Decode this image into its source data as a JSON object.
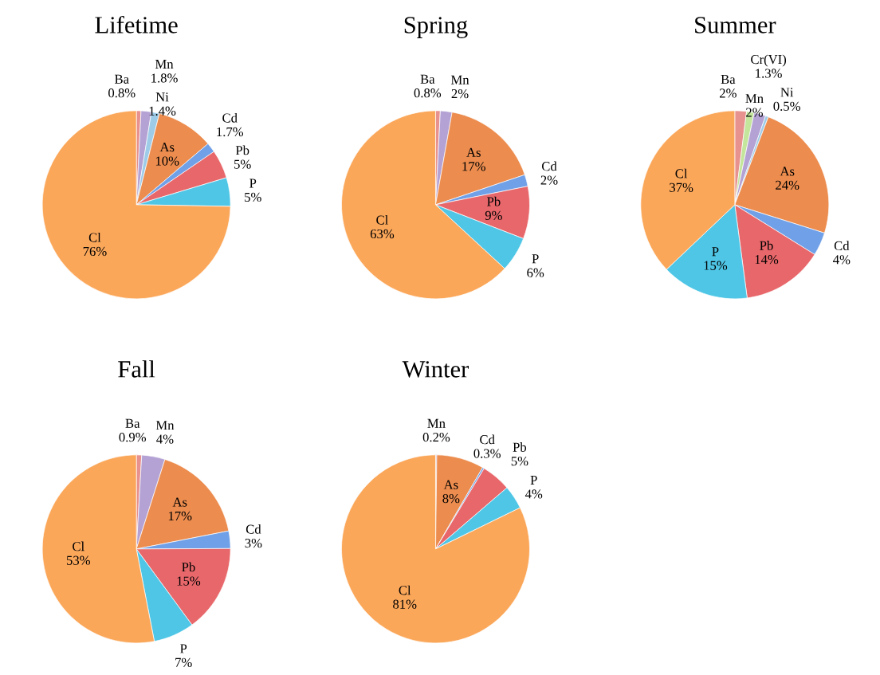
{
  "chart_data": [
    {
      "type": "pie",
      "title": "Lifetime",
      "categories": [
        "Ba",
        "Mn",
        "Ni",
        "As",
        "Cd",
        "Pb",
        "P",
        "Cl"
      ],
      "values": [
        0.8,
        1.8,
        1.4,
        10,
        1.7,
        5,
        5,
        76
      ],
      "value_labels": [
        "0.8%",
        "1.8%",
        "1.4%",
        "10%",
        "1.7%",
        "5%",
        "5%",
        "76%"
      ],
      "colors": [
        "#e8928f",
        "#b4a2d4",
        "#9ecbe8",
        "#ec8c4e",
        "#6fa0e8",
        "#e8676a",
        "#4fc6e6",
        "#fba75a"
      ]
    },
    {
      "type": "pie",
      "title": "Spring",
      "categories": [
        "Ba",
        "Mn",
        "As",
        "Cd",
        "Pb",
        "P",
        "Cl"
      ],
      "values": [
        0.8,
        2,
        17,
        2,
        9,
        6,
        63
      ],
      "value_labels": [
        "0.8%",
        "2%",
        "17%",
        "2%",
        "9%",
        "6%",
        "63%"
      ],
      "colors": [
        "#e8928f",
        "#b4a2d4",
        "#ec8c4e",
        "#6fa0e8",
        "#e8676a",
        "#4fc6e6",
        "#fba75a"
      ]
    },
    {
      "type": "pie",
      "title": "Summer",
      "categories": [
        "Ba",
        "Cr(VI)",
        "Mn",
        "Ni",
        "As",
        "Cd",
        "Pb",
        "P",
        "Cl"
      ],
      "values": [
        2,
        1.3,
        2,
        0.5,
        24,
        4,
        14,
        15,
        37
      ],
      "value_labels": [
        "2%",
        "1.3%",
        "2%",
        "0.5%",
        "24%",
        "4%",
        "14%",
        "15%",
        "37%"
      ],
      "colors": [
        "#e8928f",
        "#c3e59c",
        "#b4a2d4",
        "#9ecbe8",
        "#ec8c4e",
        "#6fa0e8",
        "#e8676a",
        "#4fc6e6",
        "#fba75a"
      ]
    },
    {
      "type": "pie",
      "title": "Fall",
      "categories": [
        "Ba",
        "Mn",
        "As",
        "Cd",
        "Pb",
        "P",
        "Cl"
      ],
      "values": [
        0.9,
        4,
        17,
        3,
        15,
        7,
        53
      ],
      "value_labels": [
        "0.9%",
        "4%",
        "17%",
        "3%",
        "15%",
        "7%",
        "53%"
      ],
      "colors": [
        "#e8928f",
        "#b4a2d4",
        "#ec8c4e",
        "#6fa0e8",
        "#e8676a",
        "#4fc6e6",
        "#fba75a"
      ]
    },
    {
      "type": "pie",
      "title": "Winter",
      "categories": [
        "Mn",
        "As",
        "Cd",
        "Pb",
        "P",
        "Cl"
      ],
      "values": [
        0.2,
        8,
        0.3,
        5,
        4,
        81
      ],
      "value_labels": [
        "0.2%",
        "8%",
        "0.3%",
        "5%",
        "4%",
        "81%"
      ],
      "colors": [
        "#b4a2d4",
        "#ec8c4e",
        "#6fa0e8",
        "#e8676a",
        "#4fc6e6",
        "#fba75a"
      ]
    }
  ]
}
